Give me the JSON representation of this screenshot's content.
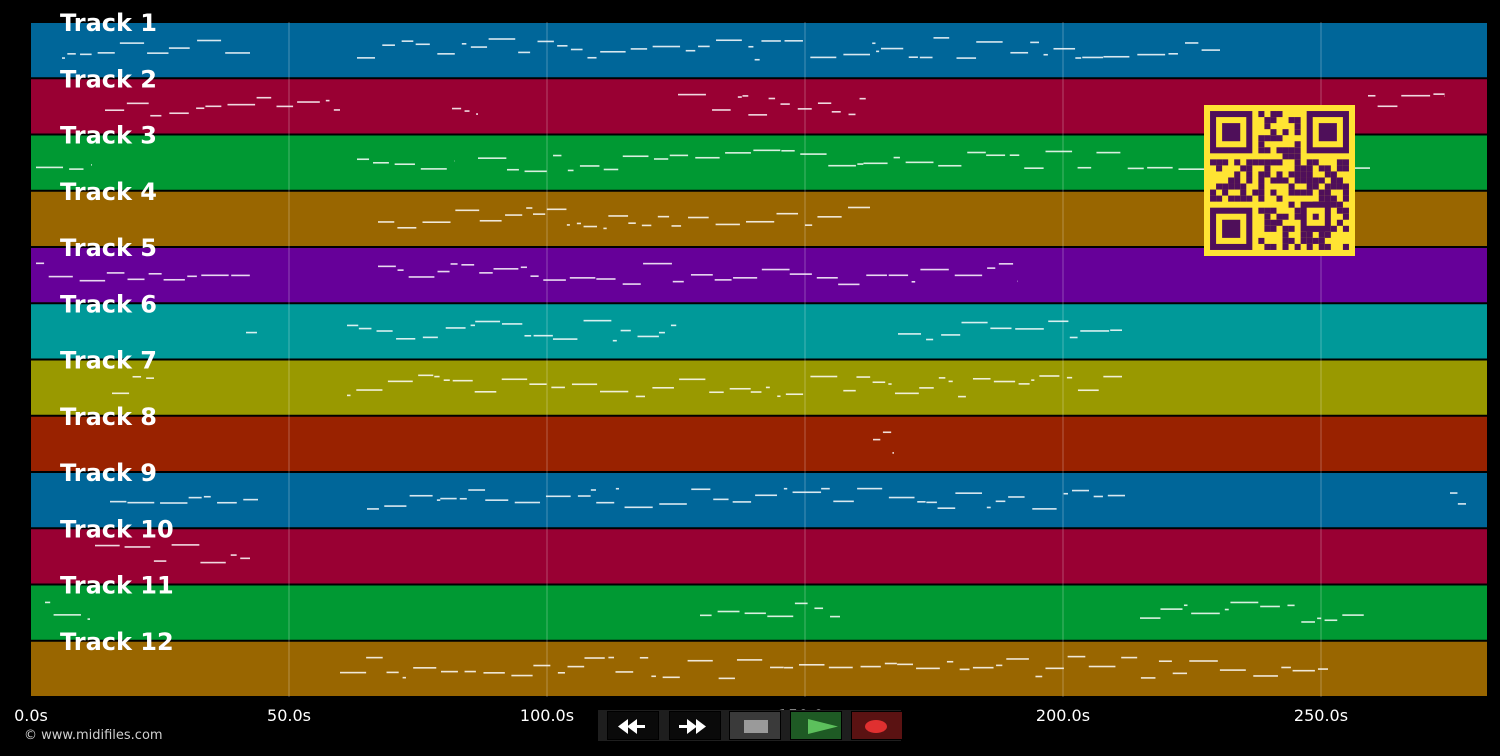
{
  "duration_s": 282,
  "tracks": [
    {
      "label": "Track 1",
      "color": "#006699"
    },
    {
      "label": "Track 2",
      "color": "#990033"
    },
    {
      "label": "Track 3",
      "color": "#009933"
    },
    {
      "label": "Track 4",
      "color": "#996600"
    },
    {
      "label": "Track 5",
      "color": "#660099"
    },
    {
      "label": "Track 6",
      "color": "#009999"
    },
    {
      "label": "Track 7",
      "color": "#999900"
    },
    {
      "label": "Track 8",
      "color": "#992200"
    },
    {
      "label": "Track 9",
      "color": "#006699"
    },
    {
      "label": "Track 10",
      "color": "#990033"
    },
    {
      "label": "Track 11",
      "color": "#009933"
    },
    {
      "label": "Track 12",
      "color": "#996600"
    }
  ],
  "time_axis": {
    "ticks": [
      0,
      50,
      100,
      150,
      200,
      250
    ],
    "tick_labels": [
      "0.0s",
      "50.0s",
      "100.0s",
      "150.0s",
      "200.0s",
      "250.0s"
    ]
  },
  "transport": {
    "rewind_icon": "rewind-icon",
    "fast_forward_icon": "fast-forward-icon",
    "stop_icon": "stop-icon",
    "play_icon": "play-icon",
    "record_icon": "record-icon",
    "play_color": "#5cc05c",
    "record_color": "#e03030"
  },
  "footer": {
    "copyright": "© www.midifiles.com"
  },
  "qr": {
    "fg": "#4f0f5a",
    "bg": "#ffe433"
  }
}
